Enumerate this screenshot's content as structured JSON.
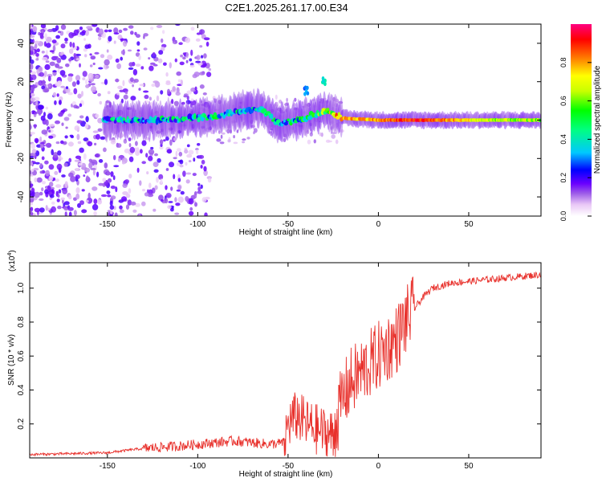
{
  "title": "C2E1.2025.261.17.00.E34",
  "chart_data": [
    {
      "type": "heatmap",
      "xlabel": "Height of straight line (km)",
      "ylabel": "Frequency (Hz)",
      "xlim": [
        -193,
        90
      ],
      "ylim": [
        -50,
        50
      ],
      "xticks": [
        -150,
        -100,
        -50,
        0,
        50
      ],
      "yticks": [
        -40,
        -20,
        0,
        20,
        40
      ],
      "xtick_labels": [
        "-150",
        "-100",
        "-50",
        "0",
        "50"
      ],
      "ytick_labels": [
        "-40",
        "-20",
        "0",
        "20",
        "40"
      ],
      "colorbar": {
        "label": "Normalized spectral amplitude",
        "range": [
          0,
          1
        ],
        "ticks": [
          0.0,
          0.2,
          0.4,
          0.6,
          0.8
        ],
        "tick_labels": [
          "0.0",
          "0.2",
          "0.4",
          "0.6",
          "0.8"
        ],
        "colors": [
          "#ffffff",
          "#e9c8f6",
          "#9b59e8",
          "#6a00ff",
          "#0000ff",
          "#00c8ff",
          "#00ff80",
          "#00ff00",
          "#c8ff00",
          "#ffff00",
          "#ff8000",
          "#ff0000",
          "#ff0080"
        ]
      },
      "ridge": [
        {
          "x": -150,
          "f": 0,
          "a": 0.3
        },
        {
          "x": -130,
          "f": 0,
          "a": 0.35
        },
        {
          "x": -110,
          "f": 0.5,
          "a": 0.35
        },
        {
          "x": -90,
          "f": 2,
          "a": 0.4
        },
        {
          "x": -75,
          "f": 5,
          "a": 0.35
        },
        {
          "x": -65,
          "f": 6,
          "a": 0.4
        },
        {
          "x": -55,
          "f": -2,
          "a": 0.35
        },
        {
          "x": -45,
          "f": 0,
          "a": 0.4
        },
        {
          "x": -35,
          "f": 3,
          "a": 0.45
        },
        {
          "x": -28,
          "f": 5,
          "a": 0.6
        },
        {
          "x": -20,
          "f": 1,
          "a": 0.8
        },
        {
          "x": 0,
          "f": 0,
          "a": 0.8
        },
        {
          "x": 20,
          "f": 0,
          "a": 0.9
        },
        {
          "x": 40,
          "f": 0,
          "a": 0.8
        },
        {
          "x": 60,
          "f": 0,
          "a": 0.65
        },
        {
          "x": 90,
          "f": 0,
          "a": 0.6
        }
      ],
      "features": [
        {
          "x": -40,
          "f": 15,
          "a": 0.3
        },
        {
          "x": -30,
          "f": 20,
          "a": 0.4
        }
      ]
    },
    {
      "type": "line",
      "xlabel": "Height of straight line (km)",
      "ylabel": "SNR (10 * v/v)",
      "scale_label": "(x10",
      "scale_exp": "4",
      "scale_close": ")",
      "xlim": [
        -193,
        90
      ],
      "ylim": [
        0,
        1.15
      ],
      "xticks": [
        -150,
        -100,
        -50,
        0,
        50
      ],
      "yticks": [
        0.2,
        0.4,
        0.6,
        0.8,
        1.0
      ],
      "xtick_labels": [
        "-150",
        "-100",
        "-50",
        "0",
        "50"
      ],
      "ytick_labels": [
        "0.2",
        "0.4",
        "0.6",
        "0.8",
        "1.0"
      ],
      "color": "#e8312c",
      "series": [
        {
          "name": "SNR",
          "x": [
            -193,
            -170,
            -150,
            -135,
            -125,
            -110,
            -100,
            -90,
            -80,
            -70,
            -60,
            -52,
            -50,
            -45,
            -40,
            -35,
            -30,
            -25,
            -20,
            -15,
            -10,
            -5,
            0,
            5,
            10,
            15,
            20,
            25,
            30,
            40,
            50,
            60,
            70,
            80,
            90
          ],
          "y": [
            0.02,
            0.025,
            0.03,
            0.05,
            0.06,
            0.07,
            0.08,
            0.09,
            0.1,
            0.09,
            0.08,
            0.09,
            0.2,
            0.25,
            0.2,
            0.17,
            0.15,
            0.13,
            0.35,
            0.45,
            0.5,
            0.55,
            0.6,
            0.65,
            0.7,
            0.8,
            0.88,
            0.95,
            1.0,
            1.03,
            1.04,
            1.05,
            1.06,
            1.07,
            1.08
          ]
        }
      ]
    }
  ]
}
